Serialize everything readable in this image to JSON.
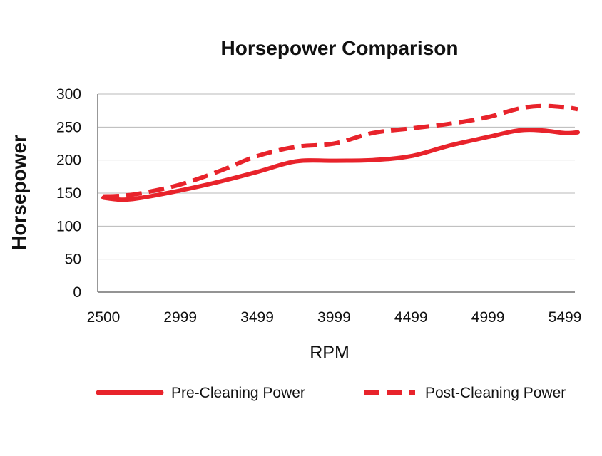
{
  "chart_data": {
    "type": "line",
    "title": "Horsepower Comparison",
    "xlabel": "RPM",
    "ylabel": "Horsepower",
    "x_ticks": [
      "2500",
      "2999",
      "3499",
      "3999",
      "4499",
      "4999",
      "5499"
    ],
    "xlim": [
      2500,
      5650
    ],
    "ylim": [
      0,
      300
    ],
    "y_ticks": [
      0,
      50,
      100,
      150,
      200,
      250,
      300
    ],
    "grid": true,
    "legend_position": "bottom",
    "series": [
      {
        "name": "Pre-Cleaning Power",
        "color": "#e8232b",
        "style": "solid",
        "x": [
          2500,
          2620,
          2750,
          2999,
          3250,
          3499,
          3750,
          3999,
          4250,
          4499,
          4750,
          4999,
          5200,
          5350,
          5499,
          5650
        ],
        "y": [
          143,
          140,
          143,
          154,
          167,
          182,
          198,
          199,
          200,
          206,
          222,
          235,
          245,
          245,
          241,
          242
        ]
      },
      {
        "name": "Post-Cleaning Power",
        "color": "#e8232b",
        "style": "dashed",
        "x": [
          2500,
          2620,
          2750,
          2999,
          3250,
          3499,
          3750,
          3999,
          4250,
          4499,
          4750,
          4999,
          5200,
          5350,
          5499,
          5650
        ],
        "y": [
          145,
          146,
          150,
          163,
          183,
          206,
          220,
          225,
          241,
          248,
          255,
          265,
          278,
          282,
          280,
          277
        ]
      }
    ]
  }
}
